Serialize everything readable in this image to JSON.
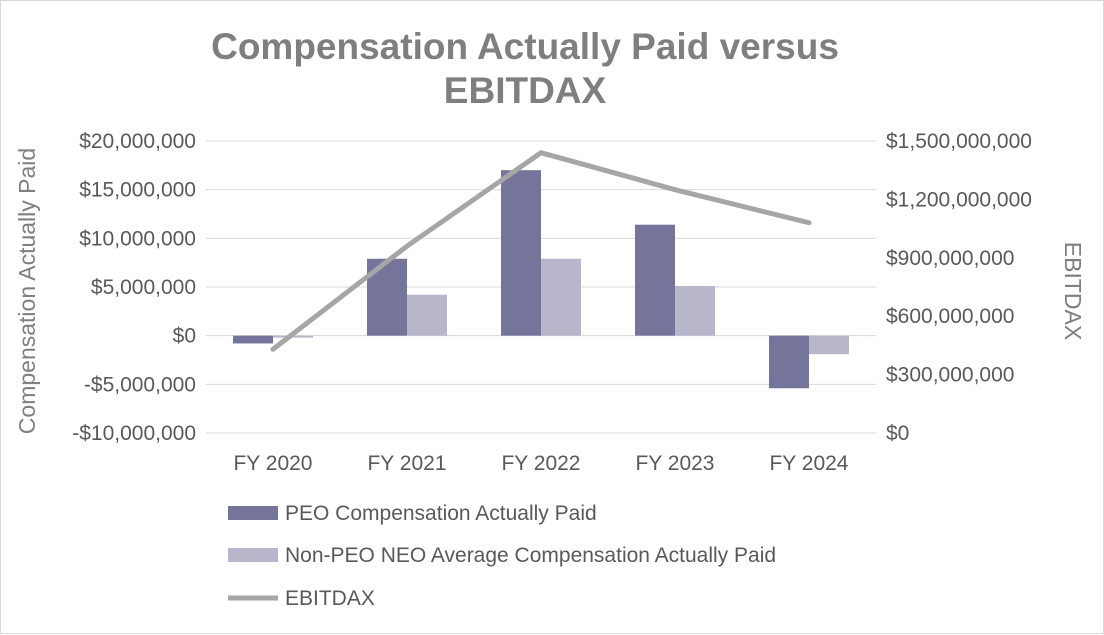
{
  "chart_data": {
    "type": "bar",
    "title_lines": [
      "Compensation Actually Paid versus",
      "EBITDAX"
    ],
    "categories": [
      "FY 2020",
      "FY 2021",
      "FY 2022",
      "FY 2023",
      "FY 2024"
    ],
    "ylabel": "Compensation Actually Paid",
    "y2label": "EBITDAX",
    "ylim": [
      -10000000,
      20000000
    ],
    "y_ticks": [
      {
        "value": 20000000,
        "label": "$20,000,000"
      },
      {
        "value": 15000000,
        "label": "$15,000,000"
      },
      {
        "value": 10000000,
        "label": "$10,000,000"
      },
      {
        "value": 5000000,
        "label": "$5,000,000"
      },
      {
        "value": 0,
        "label": "$0"
      },
      {
        "value": -5000000,
        "label": "-$5,000,000"
      },
      {
        "value": -10000000,
        "label": "-$10,000,000"
      }
    ],
    "y2lim": [
      0,
      1500000000
    ],
    "y2_ticks": [
      {
        "value": 1500000000,
        "label": "$1,500,000,000"
      },
      {
        "value": 1200000000,
        "label": "$1,200,000,000"
      },
      {
        "value": 900000000,
        "label": "$900,000,000"
      },
      {
        "value": 600000000,
        "label": "$600,000,000"
      },
      {
        "value": 300000000,
        "label": "$300,000,000"
      },
      {
        "value": 0,
        "label": "$0"
      }
    ],
    "series": [
      {
        "name": "PEO Compensation Actually Paid",
        "type": "bar",
        "axis": "left",
        "color": "#75759b",
        "values": [
          -800000,
          7900000,
          17000000,
          11400000,
          -5400000
        ]
      },
      {
        "name": "Non-PEO NEO Average Compensation Actually Paid",
        "type": "bar",
        "axis": "left",
        "color": "#b8b6cb",
        "values": [
          -200000,
          4200000,
          7900000,
          5100000,
          -1900000
        ]
      },
      {
        "name": "EBITDAX",
        "type": "line",
        "axis": "right",
        "color": "#a6a6a6",
        "values": [
          430000000,
          960000000,
          1440000000,
          1250000000,
          1080000000
        ]
      }
    ],
    "gridlines": true,
    "legend_position": "bottom"
  }
}
